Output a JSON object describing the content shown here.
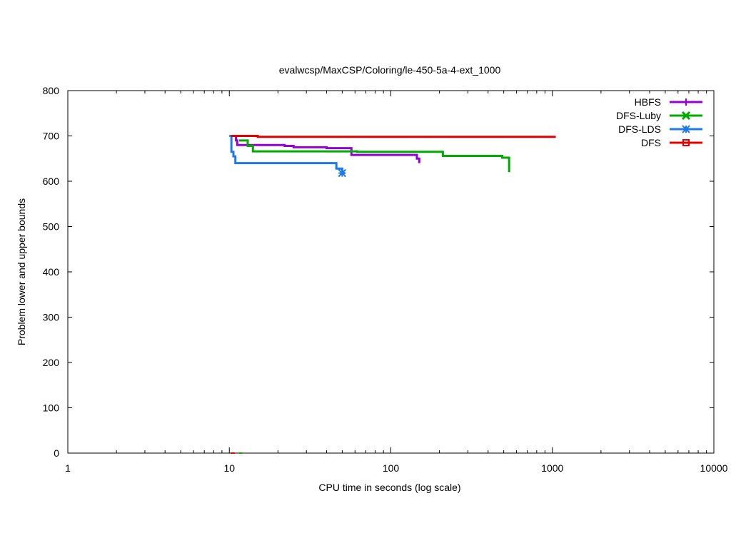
{
  "chart_data": {
    "type": "line",
    "title": "evalwcsp/MaxCSP/Coloring/le-450-5a-4-ext_1000",
    "xlabel": "CPU time in seconds (log scale)",
    "ylabel": "Problem lower and upper bounds",
    "xscale": "log",
    "xlim": [
      1,
      10000
    ],
    "ylim": [
      0,
      800
    ],
    "x_ticks": [
      1,
      10,
      100,
      1000,
      10000
    ],
    "x_tick_labels": [
      "1",
      "10",
      "100",
      "1000",
      "10000"
    ],
    "y_ticks": [
      0,
      100,
      200,
      300,
      400,
      500,
      600,
      700,
      800
    ],
    "y_tick_labels": [
      "0",
      "100",
      "200",
      "300",
      "400",
      "500",
      "600",
      "700",
      "800"
    ],
    "grid": false,
    "legend_position": "top-right",
    "series": [
      {
        "name": "HBFS",
        "color": "#9400d3",
        "marker": "plus",
        "upper": [
          [
            10.5,
            700
          ],
          [
            11,
            690
          ],
          [
            11.2,
            680
          ],
          [
            22,
            678
          ],
          [
            25,
            675
          ],
          [
            40,
            673
          ],
          [
            57,
            658
          ],
          [
            145,
            650
          ],
          [
            150,
            640
          ]
        ],
        "lower": [
          [
            10.3,
            0
          ],
          [
            10.8,
            0
          ]
        ]
      },
      {
        "name": "DFS-Luby",
        "color": "#00aa00",
        "marker": "cross",
        "upper": [
          [
            11.5,
            690
          ],
          [
            13,
            678
          ],
          [
            14,
            666
          ],
          [
            62,
            665
          ],
          [
            210,
            656
          ],
          [
            490,
            652
          ],
          [
            540,
            620
          ]
        ],
        "lower": [
          [
            11.5,
            0
          ],
          [
            12,
            0
          ]
        ]
      },
      {
        "name": "DFS-LDS",
        "color": "#1e78e6",
        "marker": "star",
        "upper": [
          [
            10,
            700
          ],
          [
            10.3,
            665
          ],
          [
            10.6,
            655
          ],
          [
            10.9,
            640
          ],
          [
            46,
            628
          ],
          [
            50,
            618
          ],
          [
            52,
            618
          ]
        ],
        "lower": []
      },
      {
        "name": "DFS",
        "color": "#e00000",
        "marker": "square",
        "upper": [
          [
            10.3,
            700
          ],
          [
            15,
            698
          ],
          [
            1050,
            698
          ]
        ],
        "lower": [
          [
            10.2,
            0
          ],
          [
            10.8,
            0
          ]
        ]
      }
    ]
  }
}
